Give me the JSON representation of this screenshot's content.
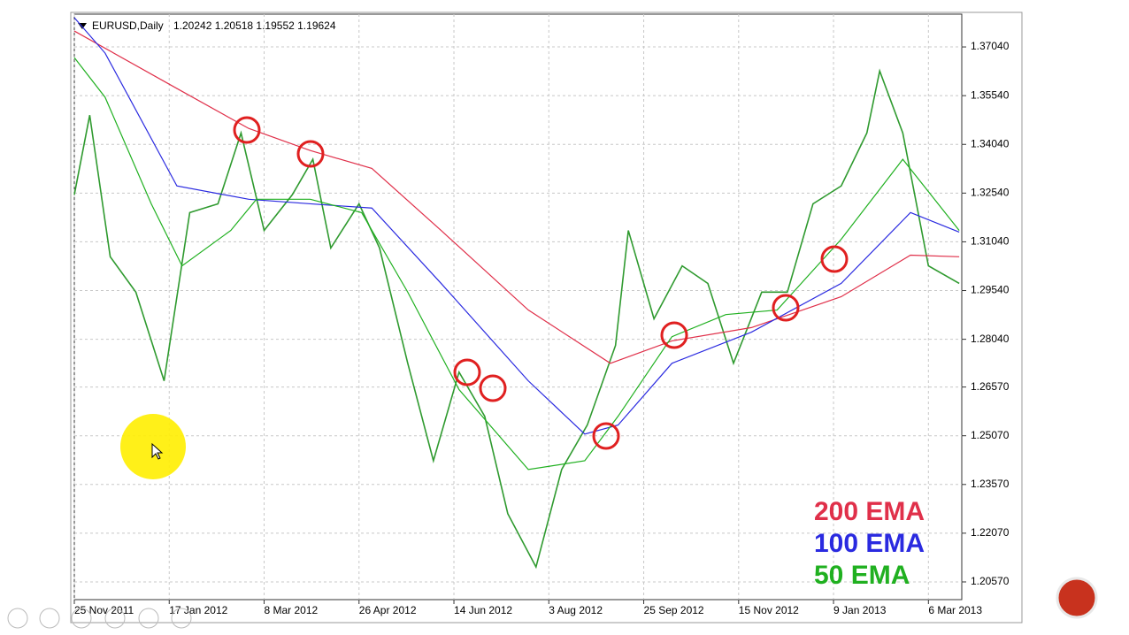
{
  "chart_data": {
    "type": "line",
    "title": "EURUSD,Daily",
    "subtitle": "1.20242 1.20518 1.19552 1.19624",
    "xlim": [
      0,
      346
    ],
    "xticks": [
      {
        "value": 0,
        "label": "25 Nov 2011"
      },
      {
        "value": 37,
        "label": "17 Jan 2012"
      },
      {
        "value": 74,
        "label": "8 Mar 2012"
      },
      {
        "value": 111,
        "label": "26 Apr 2012"
      },
      {
        "value": 148,
        "label": "14 Jun 2012"
      },
      {
        "value": 185,
        "label": "3 Aug 2012"
      },
      {
        "value": 222,
        "label": "25 Sep 2012"
      },
      {
        "value": 259,
        "label": "15 Nov 2012"
      },
      {
        "value": 296,
        "label": "9 Jan 2013"
      },
      {
        "value": 333,
        "label": "6 Mar 2013"
      }
    ],
    "ylim": [
      1.20025,
      1.38049
    ],
    "yticks": [
      {
        "value": 1.2057,
        "label": "1.20570"
      },
      {
        "value": 1.2207,
        "label": "1.22070"
      },
      {
        "value": 1.2357,
        "label": "1.23570"
      },
      {
        "value": 1.2507,
        "label": "1.25070"
      },
      {
        "value": 1.2657,
        "label": "1.26570"
      },
      {
        "value": 1.2804,
        "label": "1.28040"
      },
      {
        "value": 1.2954,
        "label": "1.29540"
      },
      {
        "value": 1.3104,
        "label": "1.31040"
      },
      {
        "value": 1.3254,
        "label": "1.32540"
      },
      {
        "value": 1.3404,
        "label": "1.34040"
      },
      {
        "value": 1.3554,
        "label": "1.35540"
      },
      {
        "value": 1.3704,
        "label": "1.37040"
      }
    ],
    "grid": true,
    "series": [
      {
        "color": "#2f9a2f",
        "x": [
          0,
          6,
          14,
          24,
          35,
          45,
          56,
          65,
          74,
          85,
          93,
          100,
          111,
          119,
          130,
          140,
          150,
          160,
          169,
          180,
          190,
          200,
          211,
          216,
          226,
          237,
          247,
          257,
          268,
          278,
          288,
          299,
          309,
          314,
          323,
          333,
          345
        ],
        "values": [
          1.3249,
          1.3494,
          1.3058,
          1.2949,
          1.2676,
          1.3194,
          1.3221,
          1.3439,
          1.3139,
          1.3249,
          1.3358,
          1.3085,
          1.3221,
          1.3085,
          1.273,
          1.243,
          1.2703,
          1.2567,
          1.2267,
          1.2103,
          1.2403,
          1.254,
          1.2785,
          1.3139,
          1.2867,
          1.303,
          1.2976,
          1.273,
          1.2949,
          1.2949,
          1.3221,
          1.3276,
          1.3439,
          1.363,
          1.3439,
          1.303,
          1.2976
        ]
      },
      {
        "name": "200 EMA",
        "color": "#e0304a",
        "x": [
          0,
          40,
          68,
          92,
          116,
          143,
          177,
          209,
          233,
          264,
          299,
          326,
          345
        ],
        "values": [
          1.3753,
          1.3576,
          1.3453,
          1.3385,
          1.333,
          1.3139,
          1.2894,
          1.273,
          1.2799,
          1.284,
          1.2935,
          1.3063,
          1.3058
        ]
      },
      {
        "name": "100 EMA",
        "color": "#2a2ae0",
        "x": [
          0,
          12,
          40,
          68,
          92,
          116,
          143,
          177,
          199,
          212,
          233,
          264,
          299,
          326,
          345
        ],
        "values": [
          1.3794,
          1.3685,
          1.3276,
          1.3235,
          1.3221,
          1.3208,
          1.2976,
          1.2676,
          1.2512,
          1.254,
          1.273,
          1.2826,
          1.2976,
          1.3194,
          1.3134
        ]
      },
      {
        "name": "50 EMA",
        "color": "#20b020",
        "x": [
          0,
          12,
          30,
          42,
          61,
          71,
          92,
          112,
          130,
          150,
          177,
          199,
          212,
          233,
          254,
          274,
          299,
          323,
          345
        ],
        "values": [
          1.3671,
          1.3549,
          1.3221,
          1.303,
          1.3139,
          1.3235,
          1.3235,
          1.3194,
          1.2949,
          1.2649,
          1.2403,
          1.243,
          1.2567,
          1.2812,
          1.288,
          1.2894,
          1.3112,
          1.3358,
          1.3139
        ]
      }
    ]
  }
}
